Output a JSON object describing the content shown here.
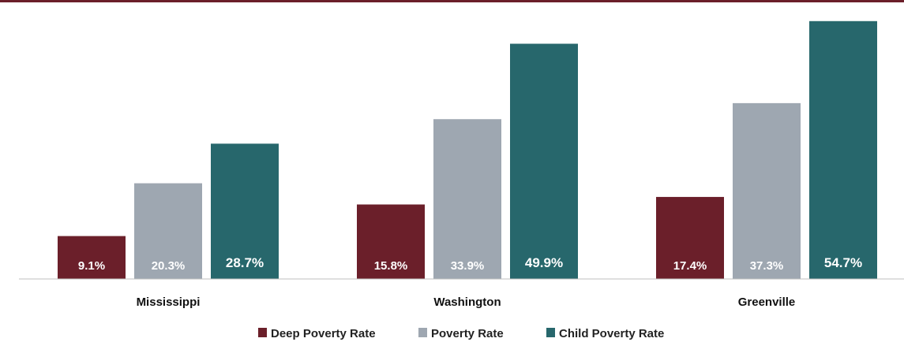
{
  "chart_data": {
    "type": "bar",
    "categories": [
      "Mississippi",
      "Washington",
      "Greenville"
    ],
    "series": [
      {
        "name": "Deep Poverty Rate",
        "values": [
          9.1,
          15.8,
          17.4
        ],
        "labels": [
          "9.1%",
          "15.8%",
          "17.4%"
        ],
        "color": "#6b1f2a"
      },
      {
        "name": "Poverty Rate",
        "values": [
          20.3,
          33.9,
          37.3
        ],
        "labels": [
          "20.3%",
          "33.9%",
          "37.3%"
        ],
        "color": "#9ea7b1"
      },
      {
        "name": "Child Poverty Rate",
        "values": [
          28.7,
          49.9,
          54.7
        ],
        "labels": [
          "28.7%",
          "49.9%",
          "54.7%"
        ],
        "color": "#27676c"
      }
    ],
    "ylim": [
      0,
      55
    ],
    "grid": false,
    "legend": "bottom",
    "top_rule_color": "#6b1f2a",
    "axis_color": "#bfbfbf"
  }
}
